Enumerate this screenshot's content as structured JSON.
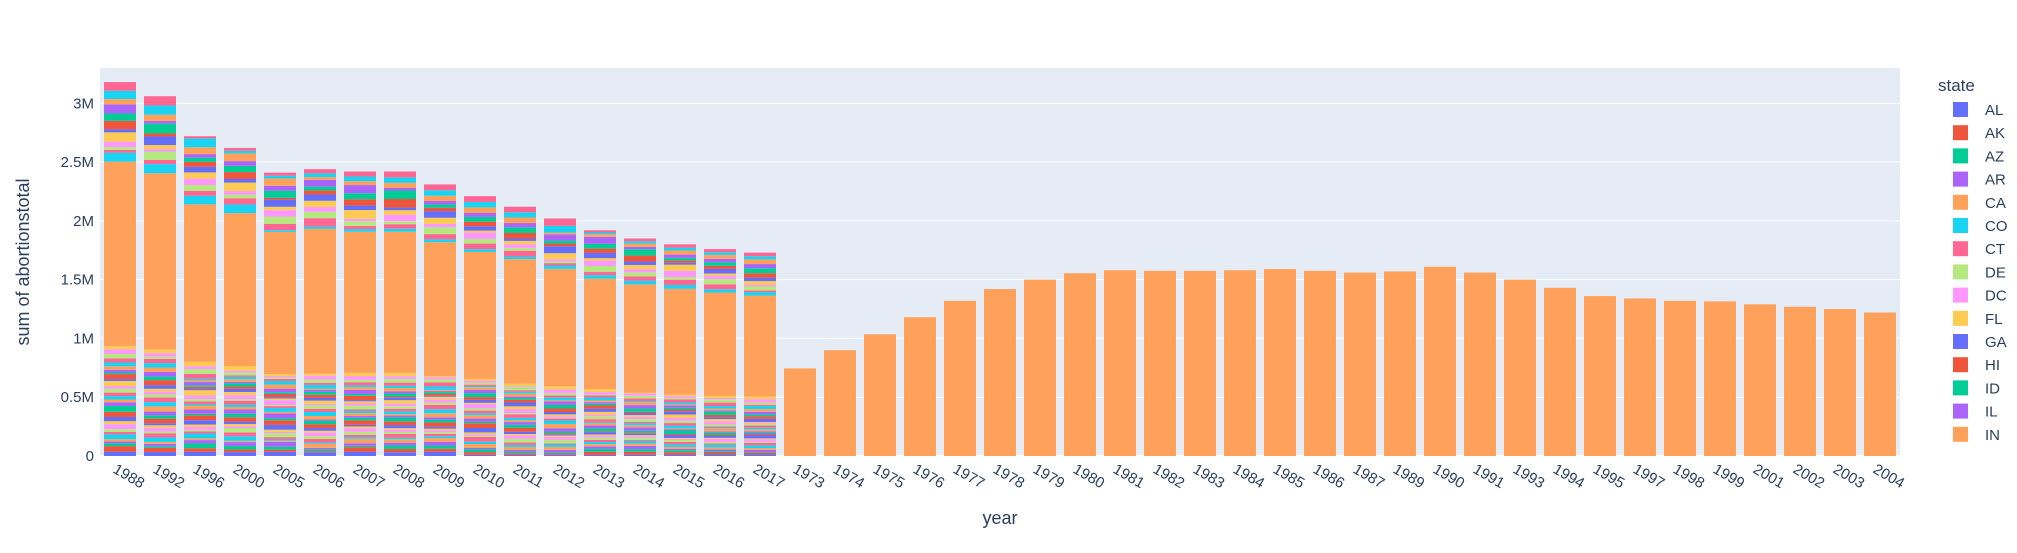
{
  "chart_data": {
    "type": "bar",
    "barmode": "stack",
    "xlabel": "year",
    "ylabel": "sum of abortionstotal",
    "ylim": [
      0,
      3300000
    ],
    "yticks": [
      0,
      500000,
      1000000,
      1500000,
      2000000,
      2500000,
      3000000
    ],
    "ytick_labels": [
      "0",
      "0.5M",
      "1M",
      "1.5M",
      "2M",
      "2.5M",
      "3M"
    ],
    "grid": true,
    "legend": {
      "title": "state",
      "placement": "right",
      "entries": [
        "AL",
        "AK",
        "AZ",
        "AR",
        "CA",
        "CO",
        "CT",
        "DE",
        "DC",
        "FL",
        "GA",
        "HI",
        "ID",
        "IL",
        "IN"
      ]
    },
    "colors": [
      "#636efa",
      "#EF553B",
      "#00cc96",
      "#ab63fa",
      "#FFA15A",
      "#19d3f3",
      "#FF6692",
      "#B6E880",
      "#FF97FF",
      "#FECB52"
    ],
    "categories": [
      "1988",
      "1992",
      "1996",
      "2000",
      "2005",
      "2006",
      "2007",
      "2008",
      "2009",
      "2010",
      "2011",
      "2012",
      "2013",
      "2014",
      "2015",
      "2016",
      "2017",
      "1973",
      "1974",
      "1975",
      "1976",
      "1977",
      "1978",
      "1979",
      "1980",
      "1981",
      "1982",
      "1983",
      "1984",
      "1985",
      "1986",
      "1987",
      "1989",
      "1990",
      "1991",
      "1993",
      "1994",
      "1995",
      "1997",
      "1998",
      "1999",
      "2001",
      "2002",
      "2003",
      "2004"
    ],
    "stacked_years": [
      "1988",
      "1992",
      "1996",
      "2000",
      "2005",
      "2006",
      "2007",
      "2008",
      "2009",
      "2010",
      "2011",
      "2012",
      "2013",
      "2014",
      "2015",
      "2016",
      "2017"
    ],
    "totals": [
      3180000,
      3060000,
      2720000,
      2620000,
      2410000,
      2440000,
      2420000,
      2420000,
      2310000,
      2210000,
      2120000,
      2020000,
      1920000,
      1850000,
      1800000,
      1760000,
      1730000,
      745000,
      900000,
      1035000,
      1180000,
      1320000,
      1420000,
      1500000,
      1555000,
      1580000,
      1575000,
      1575000,
      1580000,
      1590000,
      1575000,
      1560000,
      1570000,
      1610000,
      1560000,
      1500000,
      1430000,
      1360000,
      1340000,
      1320000,
      1315000,
      1290000,
      1270000,
      1250000,
      1220000
    ],
    "ca_bar_values": [
      1570000,
      1500000,
      1340000,
      1300000,
      1210000,
      1230000,
      1200000,
      1200000,
      1140000,
      1080000,
      1060000,
      1000000,
      940000,
      920000,
      900000,
      880000,
      860000,
      745000,
      900000,
      1035000,
      1180000,
      1320000,
      1420000,
      1500000,
      1555000,
      1580000,
      1575000,
      1575000,
      1580000,
      1590000,
      1575000,
      1560000,
      1570000,
      1610000,
      1560000,
      1500000,
      1430000,
      1360000,
      1340000,
      1320000,
      1315000,
      1290000,
      1270000,
      1250000,
      1220000
    ]
  }
}
